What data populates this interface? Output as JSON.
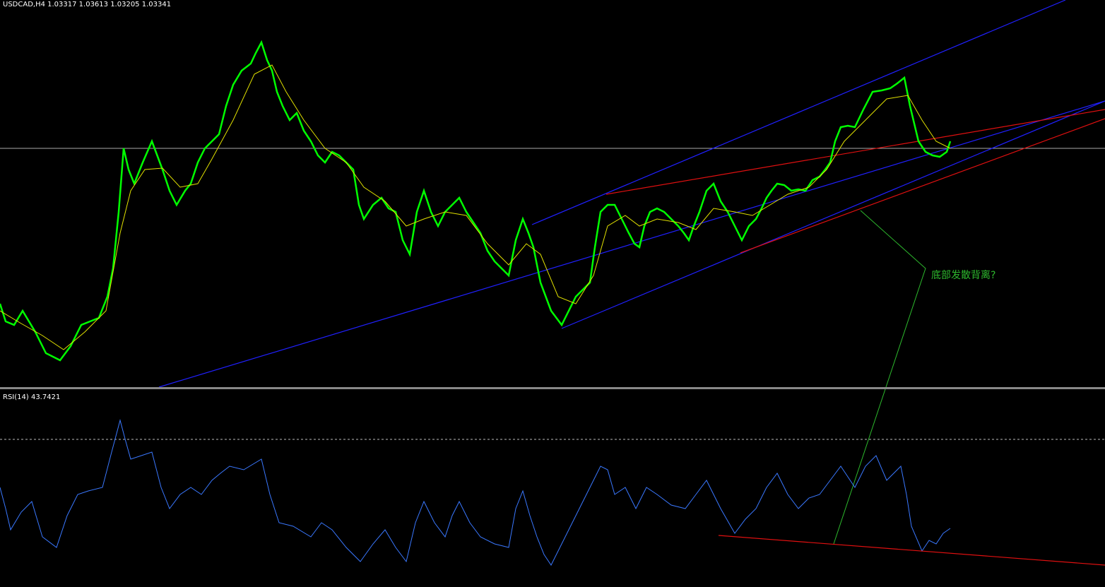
{
  "header": {
    "symbol_info": "USDCAD,H4  1.03317 1.03613 1.03205 1.03341"
  },
  "indicator": {
    "label": "RSI(14) 43.7421"
  },
  "annotation": {
    "text": "底部发散背离?"
  }
}
